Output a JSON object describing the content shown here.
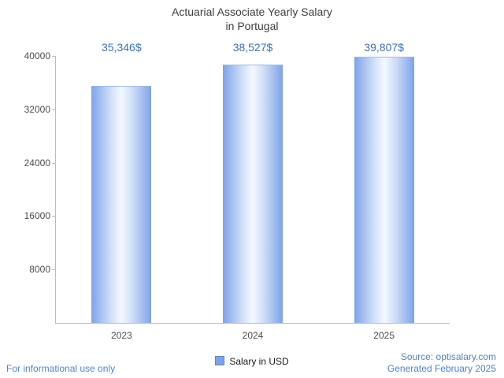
{
  "title": {
    "line1": "Actuarial Associate Yearly Salary",
    "line2": "in Portugal"
  },
  "chart_data": {
    "type": "bar",
    "title": "Actuarial Associate Yearly Salary in Portugal",
    "categories": [
      "2023",
      "2024",
      "2025"
    ],
    "values": [
      35346,
      38527,
      39807
    ],
    "value_labels": [
      "35,346$",
      "38,527$",
      "39,807$"
    ],
    "xlabel": "",
    "ylabel": "",
    "ylim": [
      0,
      40000
    ],
    "y_ticks": [
      8000,
      16000,
      24000,
      32000,
      40000
    ],
    "grid": false,
    "legend": "Salary in USD",
    "legend_position": "bottom",
    "colors": {
      "bar_edge": "#7ea3e9",
      "bar_center": "#f4f9ff",
      "value_label": "#3c6fc8",
      "footer_text": "#4e82dd",
      "axis": "#bdbdbd"
    }
  },
  "footer": {
    "left": "For informational use only",
    "source": "Source: optisalary.com",
    "generated": "Generated February 2025"
  }
}
